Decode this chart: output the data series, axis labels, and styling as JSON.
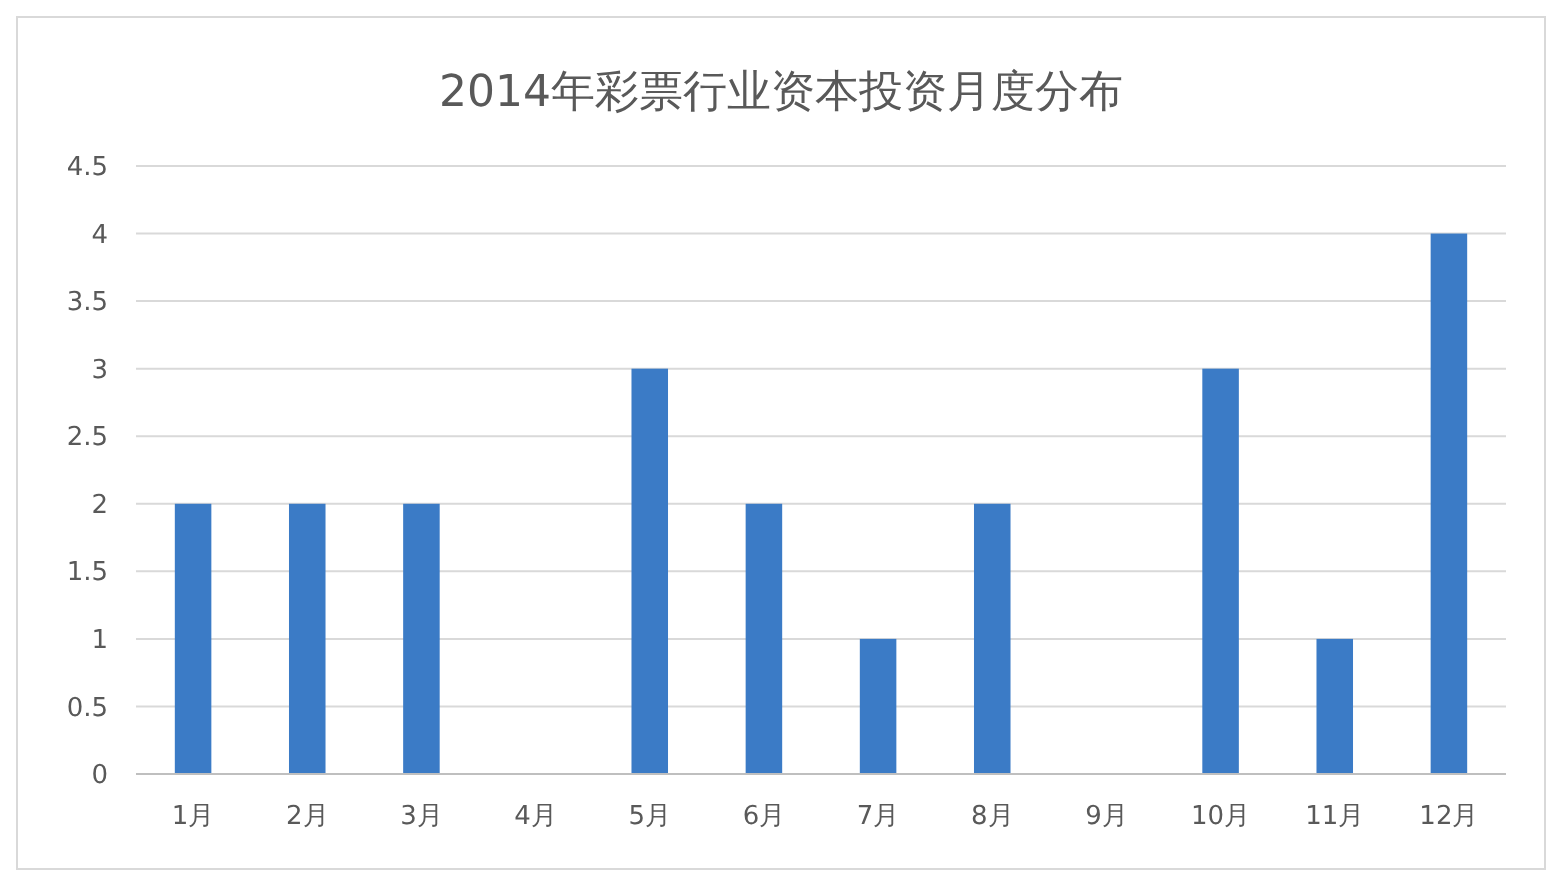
{
  "chart_data": {
    "type": "bar",
    "title": "2014年彩票行业资本投资月度分布",
    "categories": [
      "1月",
      "2月",
      "3月",
      "4月",
      "5月",
      "6月",
      "7月",
      "8月",
      "9月",
      "10月",
      "11月",
      "12月"
    ],
    "values": [
      2,
      2,
      2,
      0,
      3,
      2,
      1,
      2,
      0,
      3,
      1,
      4
    ],
    "color": "#3b7bc6",
    "ylim": [
      0,
      4.5
    ],
    "yticks": [
      0,
      0.5,
      1,
      1.5,
      2,
      2.5,
      3,
      3.5,
      4,
      4.5
    ],
    "grid": "y"
  }
}
